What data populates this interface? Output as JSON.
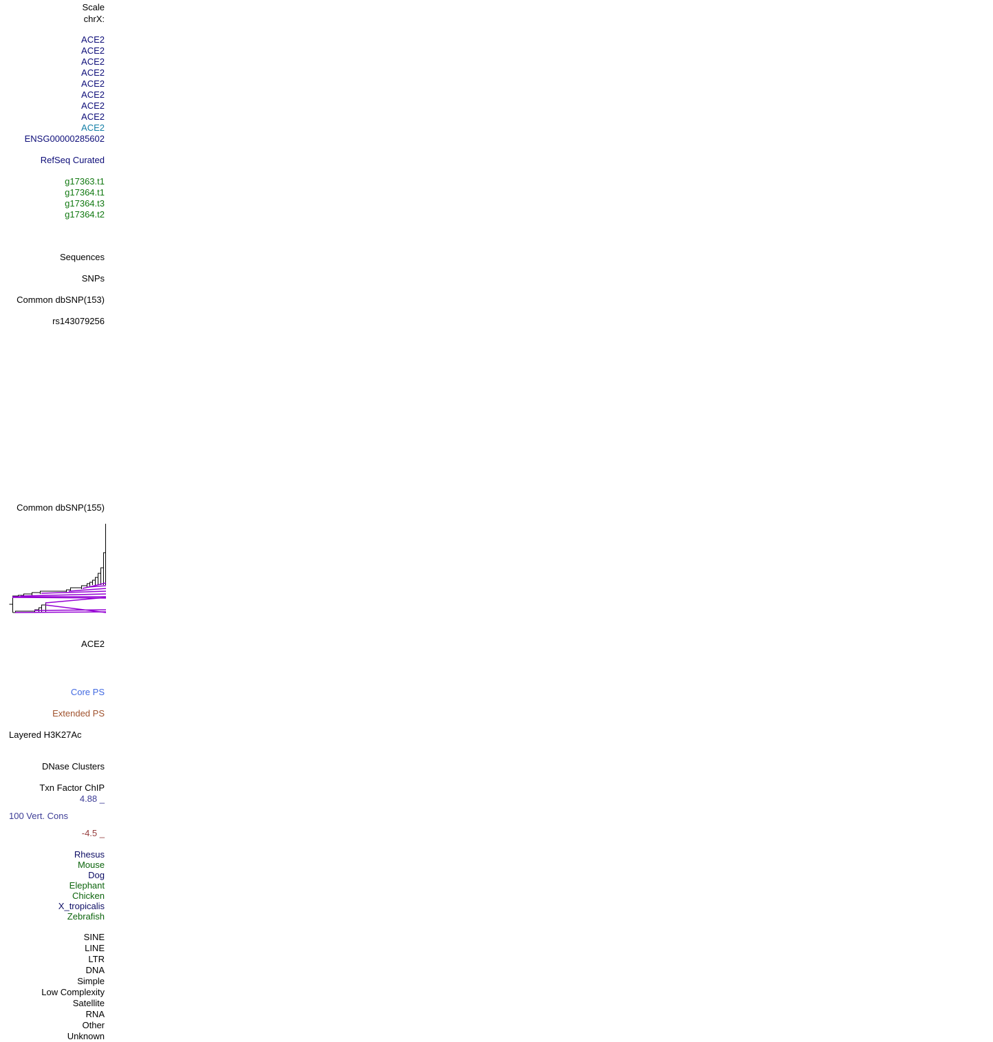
{
  "colors": {
    "black": "#000000",
    "gene_navy": "#0c0c78",
    "gene_teal": "#127ea6",
    "genscan_green": "#107810",
    "core_ps": "#4169e1",
    "extended_ps": "#a0522d",
    "cons_blue": "#3c3c96",
    "cons_red": "#963c3c",
    "species_navy": "#0c0c64",
    "species_green": "#0c640c",
    "tree_purple": "#9400d3"
  },
  "ruler": {
    "scale": "Scale",
    "chrom": "chrX:"
  },
  "gene_tracks": {
    "ace2": [
      "ACE2",
      "ACE2",
      "ACE2",
      "ACE2",
      "ACE2",
      "ACE2",
      "ACE2",
      "ACE2"
    ],
    "ace2_highlight": "ACE2",
    "ensg": "ENSG00000285602",
    "refseq": "RefSeq Curated"
  },
  "genscan": [
    "g17363.t1",
    "g17364.t1",
    "g17364.t3",
    "g17364.t2"
  ],
  "sequences": "Sequences",
  "snps": {
    "title": "SNPs",
    "common153": "Common dbSNP(153)",
    "rs": "rs143079256",
    "common155": "Common dbSNP(155)"
  },
  "ace2_lower": "ACE2",
  "ps": {
    "core": "Core PS",
    "extended": "Extended PS"
  },
  "regulation": {
    "h3k27ac": "Layered H3K27Ac",
    "dnase": "DNase Clusters",
    "txn": "Txn Factor ChIP"
  },
  "conservation": {
    "max": "4.88 _",
    "title": "100 Vert. Cons",
    "min": "-4.5 _",
    "species": [
      {
        "name": "Rhesus",
        "tone": "navy"
      },
      {
        "name": "Mouse",
        "tone": "green"
      },
      {
        "name": "Dog",
        "tone": "navy"
      },
      {
        "name": "Elephant",
        "tone": "green"
      },
      {
        "name": "Chicken",
        "tone": "green"
      },
      {
        "name": "X_tropicalis",
        "tone": "navy"
      },
      {
        "name": "Zebrafish",
        "tone": "green"
      }
    ]
  },
  "repeats": [
    "SINE",
    "LINE",
    "LTR",
    "DNA",
    "Simple",
    "Low Complexity",
    "Satellite",
    "RNA",
    "Other",
    "Unknown"
  ]
}
